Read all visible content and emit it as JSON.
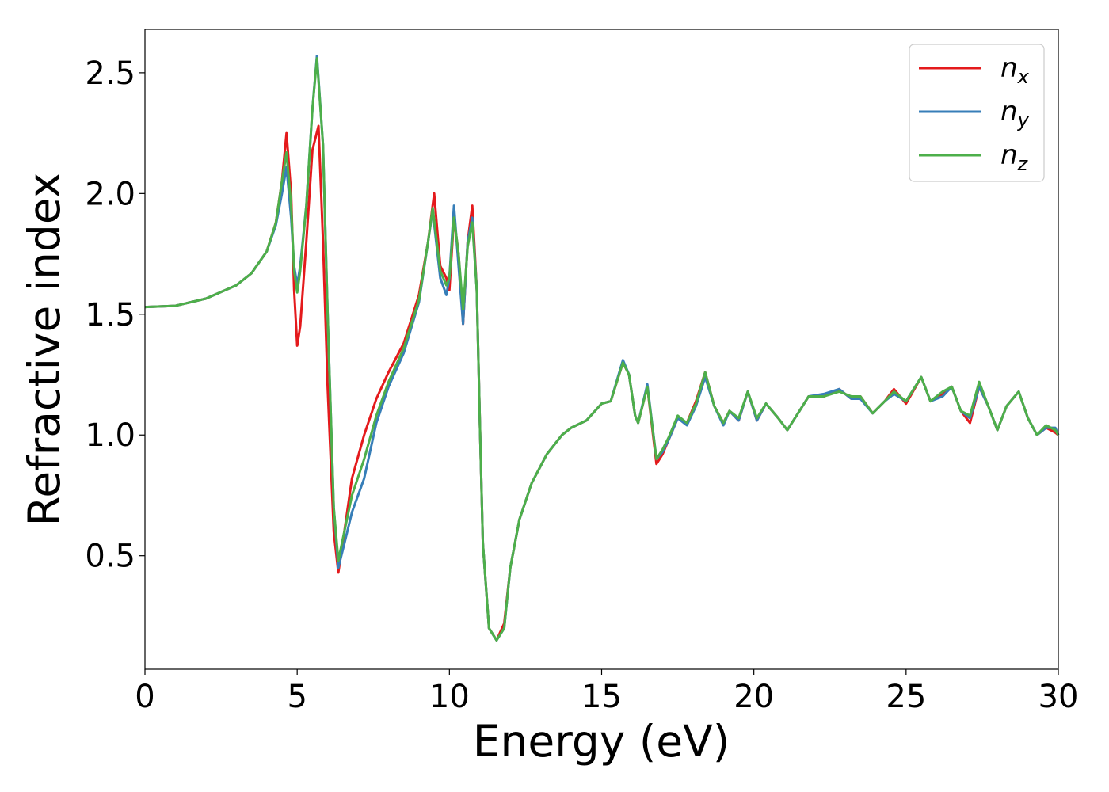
{
  "chart_data": {
    "type": "line",
    "xlabel": "Energy (eV)",
    "ylabel": "Refractive index",
    "xlim": [
      0,
      30
    ],
    "ylim": [
      0.03,
      2.68
    ],
    "x_ticks": [
      "0",
      "5",
      "10",
      "15",
      "20",
      "25",
      "30"
    ],
    "y_ticks": [
      "0.5",
      "1.0",
      "1.5",
      "2.0",
      "2.5"
    ],
    "grid": false,
    "legend_position": "top-right",
    "series": [
      {
        "name": "n",
        "subscript": "x",
        "color": "#e41a1c",
        "points": [
          [
            0,
            1.53
          ],
          [
            1,
            1.535
          ],
          [
            2,
            1.565
          ],
          [
            3,
            1.62
          ],
          [
            3.5,
            1.67
          ],
          [
            4,
            1.76
          ],
          [
            4.3,
            1.88
          ],
          [
            4.5,
            2.05
          ],
          [
            4.65,
            2.25
          ],
          [
            4.8,
            2.0
          ],
          [
            4.9,
            1.6
          ],
          [
            5.0,
            1.37
          ],
          [
            5.1,
            1.45
          ],
          [
            5.3,
            1.8
          ],
          [
            5.5,
            2.18
          ],
          [
            5.7,
            2.28
          ],
          [
            5.85,
            1.8
          ],
          [
            6.0,
            1.2
          ],
          [
            6.2,
            0.6
          ],
          [
            6.35,
            0.43
          ],
          [
            6.55,
            0.6
          ],
          [
            6.8,
            0.82
          ],
          [
            7.2,
            1.0
          ],
          [
            7.6,
            1.15
          ],
          [
            8.0,
            1.26
          ],
          [
            8.5,
            1.38
          ],
          [
            9.0,
            1.58
          ],
          [
            9.3,
            1.8
          ],
          [
            9.5,
            2.0
          ],
          [
            9.7,
            1.7
          ],
          [
            9.9,
            1.65
          ],
          [
            10.0,
            1.6
          ],
          [
            10.15,
            1.9
          ],
          [
            10.3,
            1.75
          ],
          [
            10.45,
            1.46
          ],
          [
            10.6,
            1.8
          ],
          [
            10.75,
            1.95
          ],
          [
            10.9,
            1.6
          ],
          [
            11.0,
            1.05
          ],
          [
            11.1,
            0.55
          ],
          [
            11.3,
            0.2
          ],
          [
            11.55,
            0.15
          ],
          [
            11.8,
            0.22
          ],
          [
            12.0,
            0.45
          ],
          [
            12.3,
            0.65
          ],
          [
            12.7,
            0.8
          ],
          [
            13.2,
            0.92
          ],
          [
            13.7,
            1.0
          ],
          [
            14.0,
            1.03
          ],
          [
            14.5,
            1.06
          ],
          [
            15.0,
            1.13
          ],
          [
            15.3,
            1.14
          ],
          [
            15.7,
            1.3
          ],
          [
            15.9,
            1.25
          ],
          [
            16.1,
            1.08
          ],
          [
            16.2,
            1.05
          ],
          [
            16.5,
            1.2
          ],
          [
            16.8,
            0.88
          ],
          [
            17.0,
            0.92
          ],
          [
            17.2,
            0.98
          ],
          [
            17.5,
            1.07
          ],
          [
            17.8,
            1.05
          ],
          [
            18.1,
            1.14
          ],
          [
            18.4,
            1.26
          ],
          [
            18.7,
            1.12
          ],
          [
            19.0,
            1.05
          ],
          [
            19.2,
            1.1
          ],
          [
            19.5,
            1.06
          ],
          [
            19.8,
            1.18
          ],
          [
            20.1,
            1.06
          ],
          [
            20.4,
            1.13
          ],
          [
            20.8,
            1.07
          ],
          [
            21.1,
            1.02
          ],
          [
            21.5,
            1.1
          ],
          [
            21.8,
            1.16
          ],
          [
            22.3,
            1.16
          ],
          [
            22.8,
            1.19
          ],
          [
            23.2,
            1.15
          ],
          [
            23.5,
            1.16
          ],
          [
            23.9,
            1.09
          ],
          [
            24.3,
            1.14
          ],
          [
            24.6,
            1.19
          ],
          [
            25.0,
            1.13
          ],
          [
            25.5,
            1.24
          ],
          [
            25.8,
            1.14
          ],
          [
            26.2,
            1.17
          ],
          [
            26.5,
            1.2
          ],
          [
            26.8,
            1.1
          ],
          [
            27.1,
            1.05
          ],
          [
            27.4,
            1.2
          ],
          [
            27.7,
            1.12
          ],
          [
            28.0,
            1.02
          ],
          [
            28.3,
            1.12
          ],
          [
            28.7,
            1.18
          ],
          [
            29.0,
            1.07
          ],
          [
            29.3,
            1.0
          ],
          [
            29.6,
            1.03
          ],
          [
            29.9,
            1.01
          ],
          [
            30,
            1.0
          ]
        ]
      },
      {
        "name": "n",
        "subscript": "y",
        "color": "#377eb8",
        "points": [
          [
            0,
            1.53
          ],
          [
            1,
            1.535
          ],
          [
            2,
            1.565
          ],
          [
            3,
            1.62
          ],
          [
            3.5,
            1.67
          ],
          [
            4,
            1.76
          ],
          [
            4.3,
            1.87
          ],
          [
            4.5,
            2.0
          ],
          [
            4.65,
            2.11
          ],
          [
            4.8,
            1.9
          ],
          [
            4.9,
            1.7
          ],
          [
            5.0,
            1.62
          ],
          [
            5.1,
            1.7
          ],
          [
            5.3,
            1.95
          ],
          [
            5.5,
            2.35
          ],
          [
            5.65,
            2.57
          ],
          [
            5.85,
            2.2
          ],
          [
            6.0,
            1.5
          ],
          [
            6.2,
            0.7
          ],
          [
            6.35,
            0.45
          ],
          [
            6.55,
            0.55
          ],
          [
            6.8,
            0.68
          ],
          [
            7.2,
            0.82
          ],
          [
            7.6,
            1.05
          ],
          [
            8.0,
            1.2
          ],
          [
            8.5,
            1.34
          ],
          [
            9.0,
            1.55
          ],
          [
            9.3,
            1.8
          ],
          [
            9.45,
            1.93
          ],
          [
            9.7,
            1.65
          ],
          [
            9.9,
            1.58
          ],
          [
            10.0,
            1.65
          ],
          [
            10.15,
            1.95
          ],
          [
            10.3,
            1.7
          ],
          [
            10.45,
            1.46
          ],
          [
            10.6,
            1.8
          ],
          [
            10.75,
            1.9
          ],
          [
            10.9,
            1.6
          ],
          [
            11.0,
            1.05
          ],
          [
            11.1,
            0.55
          ],
          [
            11.3,
            0.2
          ],
          [
            11.55,
            0.15
          ],
          [
            11.8,
            0.2
          ],
          [
            12.0,
            0.45
          ],
          [
            12.3,
            0.65
          ],
          [
            12.7,
            0.8
          ],
          [
            13.2,
            0.92
          ],
          [
            13.7,
            1.0
          ],
          [
            14.0,
            1.03
          ],
          [
            14.5,
            1.06
          ],
          [
            15.0,
            1.13
          ],
          [
            15.3,
            1.14
          ],
          [
            15.7,
            1.31
          ],
          [
            15.9,
            1.25
          ],
          [
            16.1,
            1.08
          ],
          [
            16.2,
            1.05
          ],
          [
            16.5,
            1.21
          ],
          [
            16.8,
            0.9
          ],
          [
            17.0,
            0.93
          ],
          [
            17.2,
            0.98
          ],
          [
            17.5,
            1.07
          ],
          [
            17.8,
            1.04
          ],
          [
            18.1,
            1.12
          ],
          [
            18.4,
            1.24
          ],
          [
            18.7,
            1.12
          ],
          [
            19.0,
            1.04
          ],
          [
            19.2,
            1.1
          ],
          [
            19.5,
            1.06
          ],
          [
            19.8,
            1.18
          ],
          [
            20.1,
            1.06
          ],
          [
            20.4,
            1.13
          ],
          [
            20.8,
            1.07
          ],
          [
            21.1,
            1.02
          ],
          [
            21.5,
            1.1
          ],
          [
            21.8,
            1.16
          ],
          [
            22.3,
            1.17
          ],
          [
            22.8,
            1.19
          ],
          [
            23.2,
            1.15
          ],
          [
            23.5,
            1.15
          ],
          [
            23.9,
            1.09
          ],
          [
            24.3,
            1.14
          ],
          [
            24.6,
            1.17
          ],
          [
            25.0,
            1.14
          ],
          [
            25.5,
            1.24
          ],
          [
            25.8,
            1.14
          ],
          [
            26.2,
            1.16
          ],
          [
            26.5,
            1.2
          ],
          [
            26.8,
            1.1
          ],
          [
            27.1,
            1.07
          ],
          [
            27.4,
            1.2
          ],
          [
            27.7,
            1.12
          ],
          [
            28.0,
            1.02
          ],
          [
            28.3,
            1.12
          ],
          [
            28.7,
            1.18
          ],
          [
            29.0,
            1.07
          ],
          [
            29.3,
            1.0
          ],
          [
            29.6,
            1.03
          ],
          [
            29.9,
            1.03
          ],
          [
            30,
            1.0
          ]
        ]
      },
      {
        "name": "n",
        "subscript": "z",
        "color": "#4daf4a",
        "points": [
          [
            0,
            1.53
          ],
          [
            1,
            1.535
          ],
          [
            2,
            1.565
          ],
          [
            3,
            1.62
          ],
          [
            3.5,
            1.67
          ],
          [
            4,
            1.76
          ],
          [
            4.3,
            1.88
          ],
          [
            4.5,
            2.05
          ],
          [
            4.65,
            2.17
          ],
          [
            4.8,
            1.95
          ],
          [
            4.9,
            1.68
          ],
          [
            5.0,
            1.59
          ],
          [
            5.1,
            1.68
          ],
          [
            5.3,
            1.95
          ],
          [
            5.5,
            2.35
          ],
          [
            5.65,
            2.56
          ],
          [
            5.85,
            2.2
          ],
          [
            6.0,
            1.5
          ],
          [
            6.2,
            0.7
          ],
          [
            6.35,
            0.48
          ],
          [
            6.55,
            0.6
          ],
          [
            6.8,
            0.75
          ],
          [
            7.2,
            0.9
          ],
          [
            7.6,
            1.08
          ],
          [
            8.0,
            1.22
          ],
          [
            8.5,
            1.36
          ],
          [
            9.0,
            1.56
          ],
          [
            9.3,
            1.8
          ],
          [
            9.45,
            1.94
          ],
          [
            9.7,
            1.68
          ],
          [
            9.9,
            1.62
          ],
          [
            10.0,
            1.65
          ],
          [
            10.15,
            1.9
          ],
          [
            10.3,
            1.75
          ],
          [
            10.45,
            1.52
          ],
          [
            10.6,
            1.78
          ],
          [
            10.75,
            1.88
          ],
          [
            10.9,
            1.6
          ],
          [
            11.0,
            1.05
          ],
          [
            11.1,
            0.55
          ],
          [
            11.3,
            0.2
          ],
          [
            11.55,
            0.15
          ],
          [
            11.8,
            0.2
          ],
          [
            12.0,
            0.45
          ],
          [
            12.3,
            0.65
          ],
          [
            12.7,
            0.8
          ],
          [
            13.2,
            0.92
          ],
          [
            13.7,
            1.0
          ],
          [
            14.0,
            1.03
          ],
          [
            14.5,
            1.06
          ],
          [
            15.0,
            1.13
          ],
          [
            15.3,
            1.14
          ],
          [
            15.7,
            1.3
          ],
          [
            15.9,
            1.25
          ],
          [
            16.1,
            1.08
          ],
          [
            16.2,
            1.05
          ],
          [
            16.5,
            1.2
          ],
          [
            16.8,
            0.9
          ],
          [
            17.0,
            0.94
          ],
          [
            17.2,
            0.99
          ],
          [
            17.5,
            1.08
          ],
          [
            17.8,
            1.05
          ],
          [
            18.1,
            1.13
          ],
          [
            18.4,
            1.26
          ],
          [
            18.7,
            1.12
          ],
          [
            19.0,
            1.05
          ],
          [
            19.2,
            1.1
          ],
          [
            19.5,
            1.07
          ],
          [
            19.8,
            1.18
          ],
          [
            20.1,
            1.07
          ],
          [
            20.4,
            1.13
          ],
          [
            20.8,
            1.07
          ],
          [
            21.1,
            1.02
          ],
          [
            21.5,
            1.1
          ],
          [
            21.8,
            1.16
          ],
          [
            22.3,
            1.16
          ],
          [
            22.8,
            1.18
          ],
          [
            23.2,
            1.16
          ],
          [
            23.5,
            1.16
          ],
          [
            23.9,
            1.09
          ],
          [
            24.3,
            1.14
          ],
          [
            24.6,
            1.18
          ],
          [
            25.0,
            1.14
          ],
          [
            25.5,
            1.24
          ],
          [
            25.8,
            1.14
          ],
          [
            26.2,
            1.18
          ],
          [
            26.5,
            1.2
          ],
          [
            26.8,
            1.1
          ],
          [
            27.1,
            1.08
          ],
          [
            27.4,
            1.22
          ],
          [
            27.7,
            1.12
          ],
          [
            28.0,
            1.02
          ],
          [
            28.3,
            1.12
          ],
          [
            28.7,
            1.18
          ],
          [
            29.0,
            1.07
          ],
          [
            29.3,
            1.0
          ],
          [
            29.6,
            1.04
          ],
          [
            29.9,
            1.02
          ],
          [
            30,
            1.0
          ]
        ]
      }
    ]
  }
}
